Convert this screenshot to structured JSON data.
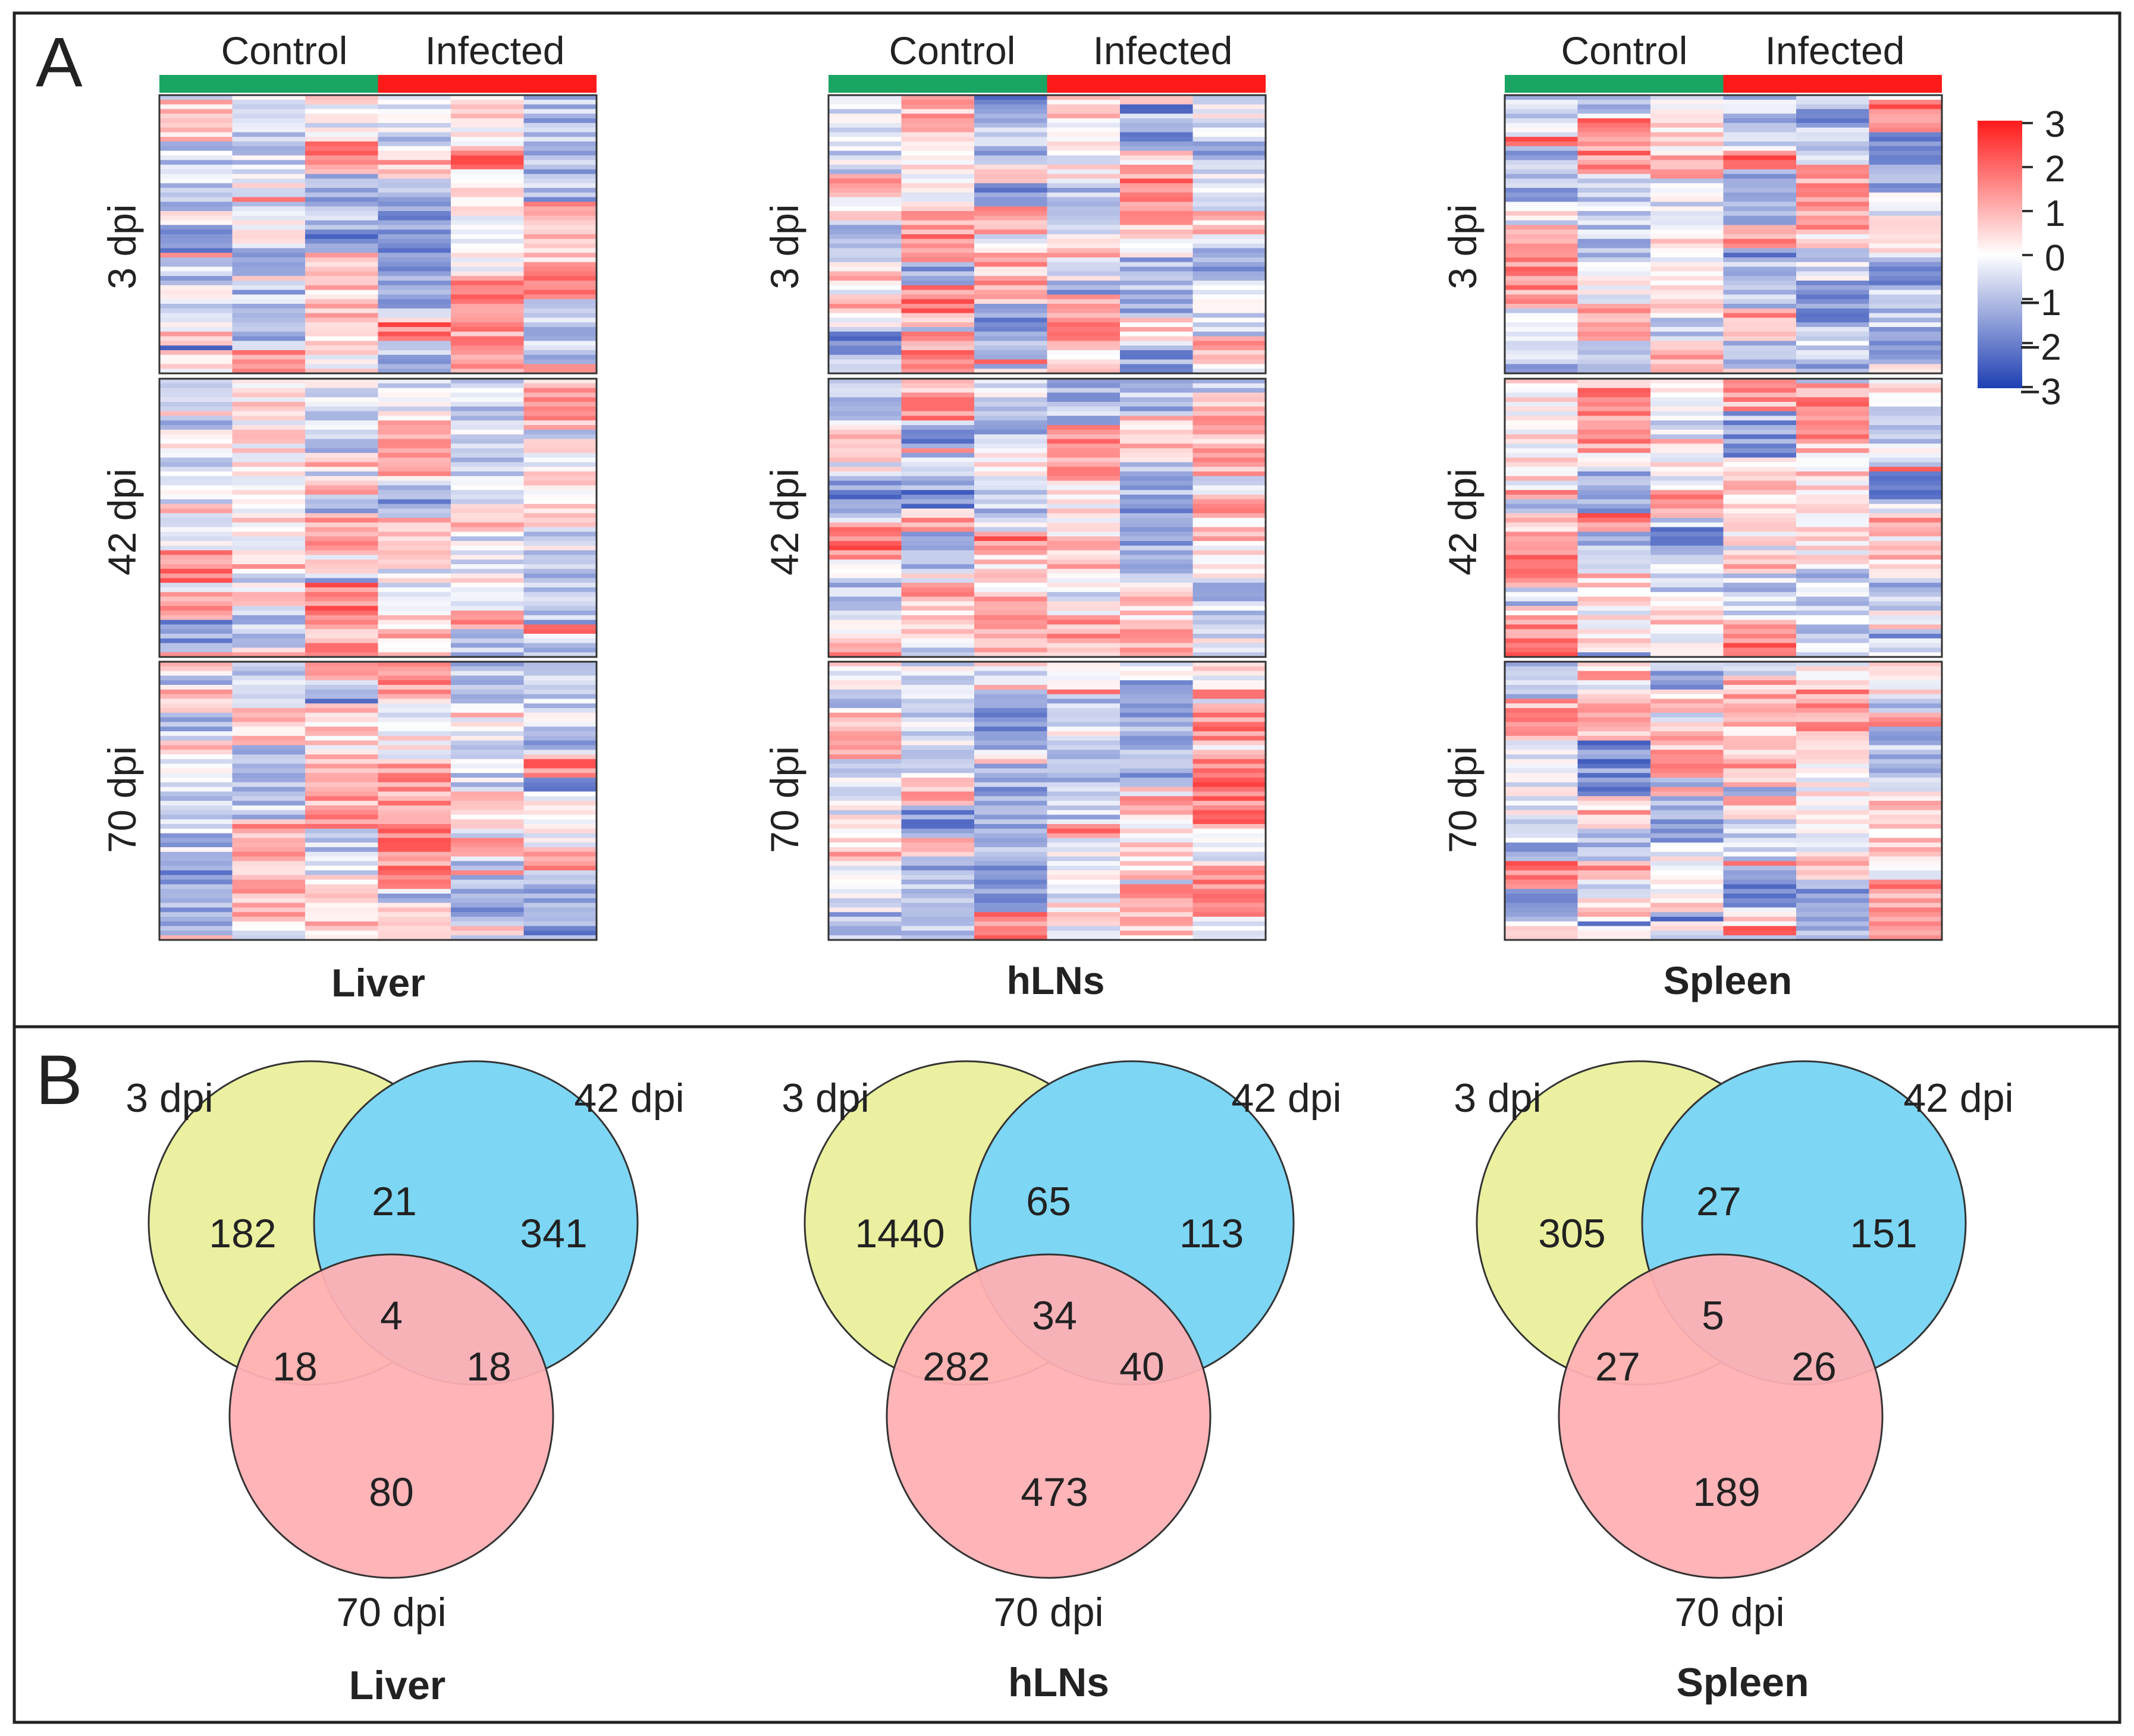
{
  "chart_data": [
    {
      "type": "heatmap",
      "panel": "A",
      "group_labels": [
        "Control",
        "Infected"
      ],
      "group_colors": [
        "#1aa564",
        "#ff1a1a"
      ],
      "row_labels": [
        "3 dpi",
        "42 dpi",
        "70 dpi"
      ],
      "scale": {
        "min": -3,
        "max": 3,
        "ticks": [
          "3",
          "2",
          "1",
          "0",
          "−1",
          "−2",
          "−3"
        ],
        "low_color": "#1f3fb3",
        "mid_color": "#ffffff",
        "high_color": "#ff1a1a"
      },
      "tissues": [
        {
          "name": "Liver",
          "seed": 11
        },
        {
          "name": "hLNs",
          "seed": 29
        },
        {
          "name": "Spleen",
          "seed": 47
        }
      ]
    },
    {
      "type": "venn",
      "panel": "B",
      "set_labels": [
        "3 dpi",
        "42 dpi",
        "70 dpi"
      ],
      "set_colors": [
        "#eaf0a0",
        "#7dd6f4",
        "#ffafb4"
      ],
      "tissues": [
        {
          "name": "Liver",
          "only_3": "182",
          "only_42": "341",
          "only_70": "80",
          "d3_42": "21",
          "d3_70": "18",
          "d42_70": "18",
          "all": "4"
        },
        {
          "name": "hLNs",
          "only_3": "1440",
          "only_42": "113",
          "only_70": "473",
          "d3_42": "65",
          "d3_70": "282",
          "d42_70": "40",
          "all": "34"
        },
        {
          "name": "Spleen",
          "only_3": "305",
          "only_42": "151",
          "only_70": "189",
          "d3_42": "27",
          "d3_70": "27",
          "d42_70": "26",
          "all": "5"
        }
      ]
    }
  ]
}
